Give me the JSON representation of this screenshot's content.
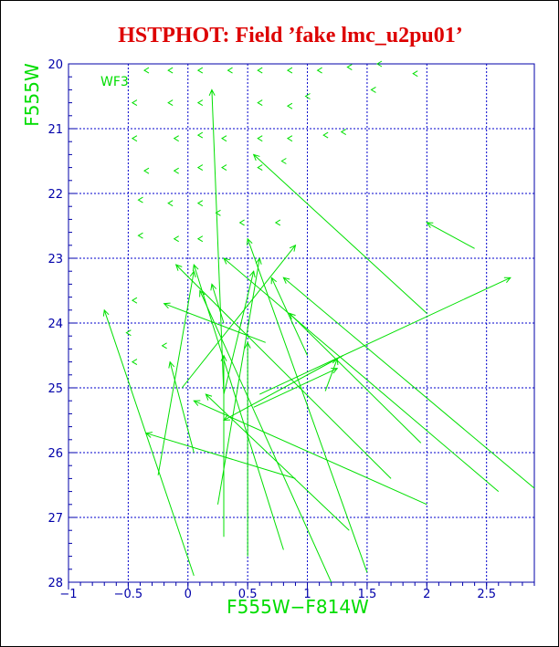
{
  "colors": {
    "title": "#dd0000",
    "axis": "#0000aa",
    "grid": "#0000cc",
    "data": "#00e000",
    "label": "#00dd00",
    "background": "#ffffff"
  },
  "chart_data": {
    "type": "scatter",
    "title": "HSTPHOT: Field ’fake lmc_u2pu01’",
    "xlabel": "F555W−F814W",
    "ylabel": "F555W",
    "panel_label": "WF3",
    "xlim": [
      -1.0,
      2.9
    ],
    "ylim": [
      28.0,
      20.0
    ],
    "y_inverted": true,
    "grid": true,
    "x_ticks": [
      -1,
      -0.5,
      0,
      0.5,
      1,
      1.5,
      2,
      2.5
    ],
    "x_tick_labels": [
      "−1",
      "−0.5",
      "0",
      "0.5",
      "1",
      "1.5",
      "2",
      "2.5"
    ],
    "y_ticks": [
      20,
      21,
      22,
      23,
      24,
      25,
      26,
      27,
      28
    ],
    "y_tick_labels": [
      "20",
      "21",
      "22",
      "23",
      "24",
      "25",
      "26",
      "27",
      "28"
    ],
    "markers": [
      {
        "x": -0.35,
        "y": 20.1
      },
      {
        "x": -0.15,
        "y": 20.1
      },
      {
        "x": 0.1,
        "y": 20.1
      },
      {
        "x": 0.35,
        "y": 20.1
      },
      {
        "x": 0.6,
        "y": 20.1
      },
      {
        "x": 0.85,
        "y": 20.1
      },
      {
        "x": 1.1,
        "y": 20.1
      },
      {
        "x": 1.35,
        "y": 20.05
      },
      {
        "x": 1.6,
        "y": 20.0
      },
      {
        "x": 1.9,
        "y": 20.15
      },
      {
        "x": -0.45,
        "y": 20.6
      },
      {
        "x": -0.15,
        "y": 20.6
      },
      {
        "x": 0.1,
        "y": 20.6
      },
      {
        "x": 0.6,
        "y": 20.6
      },
      {
        "x": 0.85,
        "y": 20.65
      },
      {
        "x": 1.0,
        "y": 20.5
      },
      {
        "x": 1.55,
        "y": 20.4
      },
      {
        "x": -0.45,
        "y": 21.15
      },
      {
        "x": -0.1,
        "y": 21.15
      },
      {
        "x": 0.1,
        "y": 21.1
      },
      {
        "x": 0.3,
        "y": 21.15
      },
      {
        "x": 0.6,
        "y": 21.15
      },
      {
        "x": 0.85,
        "y": 21.15
      },
      {
        "x": 1.15,
        "y": 21.1
      },
      {
        "x": 1.3,
        "y": 21.05
      },
      {
        "x": -0.35,
        "y": 21.65
      },
      {
        "x": -0.1,
        "y": 21.65
      },
      {
        "x": 0.1,
        "y": 21.6
      },
      {
        "x": 0.3,
        "y": 21.6
      },
      {
        "x": 0.6,
        "y": 21.6
      },
      {
        "x": 0.8,
        "y": 21.5
      },
      {
        "x": -0.4,
        "y": 22.1
      },
      {
        "x": -0.15,
        "y": 22.15
      },
      {
        "x": 0.1,
        "y": 22.15
      },
      {
        "x": 0.25,
        "y": 22.3
      },
      {
        "x": 0.45,
        "y": 22.45
      },
      {
        "x": 0.75,
        "y": 22.45
      },
      {
        "x": -0.4,
        "y": 22.65
      },
      {
        "x": -0.1,
        "y": 22.7
      },
      {
        "x": 0.1,
        "y": 22.7
      },
      {
        "x": -0.45,
        "y": 23.65
      },
      {
        "x": -0.5,
        "y": 24.15
      },
      {
        "x": -0.45,
        "y": 24.6
      },
      {
        "x": -0.2,
        "y": 24.35
      }
    ],
    "vectors": [
      {
        "x1": 2.0,
        "y1": 23.85,
        "x2": 0.55,
        "y2": 21.4
      },
      {
        "x1": 2.4,
        "y1": 22.85,
        "x2": 2.0,
        "y2": 22.45
      },
      {
        "x1": 0.3,
        "y1": 25.1,
        "x2": 0.2,
        "y2": 20.4
      },
      {
        "x1": 0.05,
        "y1": 27.9,
        "x2": -0.7,
        "y2": 23.8
      },
      {
        "x1": -0.25,
        "y1": 26.35,
        "x2": 0.05,
        "y2": 23.2
      },
      {
        "x1": 0.6,
        "y1": 25.1,
        "x2": 2.7,
        "y2": 23.3
      },
      {
        "x1": 1.5,
        "y1": 27.85,
        "x2": 0.5,
        "y2": 22.7
      },
      {
        "x1": 2.6,
        "y1": 26.6,
        "x2": 0.3,
        "y2": 23.0
      },
      {
        "x1": 2.9,
        "y1": 26.55,
        "x2": 0.8,
        "y2": 23.3
      },
      {
        "x1": 1.2,
        "y1": 28.0,
        "x2": 0.1,
        "y2": 23.5
      },
      {
        "x1": 0.8,
        "y1": 27.5,
        "x2": 0.05,
        "y2": 23.1
      },
      {
        "x1": 2.0,
        "y1": 26.8,
        "x2": 0.05,
        "y2": 25.2
      },
      {
        "x1": 1.3,
        "y1": 24.5,
        "x2": 0.3,
        "y2": 25.5
      },
      {
        "x1": 1.7,
        "y1": 26.4,
        "x2": -0.1,
        "y2": 23.1
      },
      {
        "x1": 0.5,
        "y1": 27.6,
        "x2": 0.5,
        "y2": 24.3
      },
      {
        "x1": 0.9,
        "y1": 26.4,
        "x2": -0.35,
        "y2": 25.7
      },
      {
        "x1": 1.15,
        "y1": 25.05,
        "x2": 1.25,
        "y2": 24.55
      },
      {
        "x1": 0.3,
        "y1": 27.3,
        "x2": 0.3,
        "y2": 24.5
      },
      {
        "x1": 0.65,
        "y1": 24.3,
        "x2": -0.2,
        "y2": 23.7
      },
      {
        "x1": 1.95,
        "y1": 25.85,
        "x2": 0.85,
        "y2": 23.85
      },
      {
        "x1": 1.35,
        "y1": 27.2,
        "x2": 0.15,
        "y2": 25.1
      },
      {
        "x1": -0.05,
        "y1": 25.0,
        "x2": 0.9,
        "y2": 22.8
      },
      {
        "x1": 0.3,
        "y1": 24.0,
        "x2": 0.2,
        "y2": 23.4
      },
      {
        "x1": 0.3,
        "y1": 25.1,
        "x2": 0.55,
        "y2": 23.2
      },
      {
        "x1": 1.0,
        "y1": 24.5,
        "x2": 0.7,
        "y2": 23.3
      },
      {
        "x1": 0.55,
        "y1": 25.3,
        "x2": 1.25,
        "y2": 24.7
      },
      {
        "x1": 0.05,
        "y1": 26.0,
        "x2": -0.15,
        "y2": 24.6
      },
      {
        "x1": 0.25,
        "y1": 26.8,
        "x2": 0.6,
        "y2": 23.0
      }
    ]
  }
}
